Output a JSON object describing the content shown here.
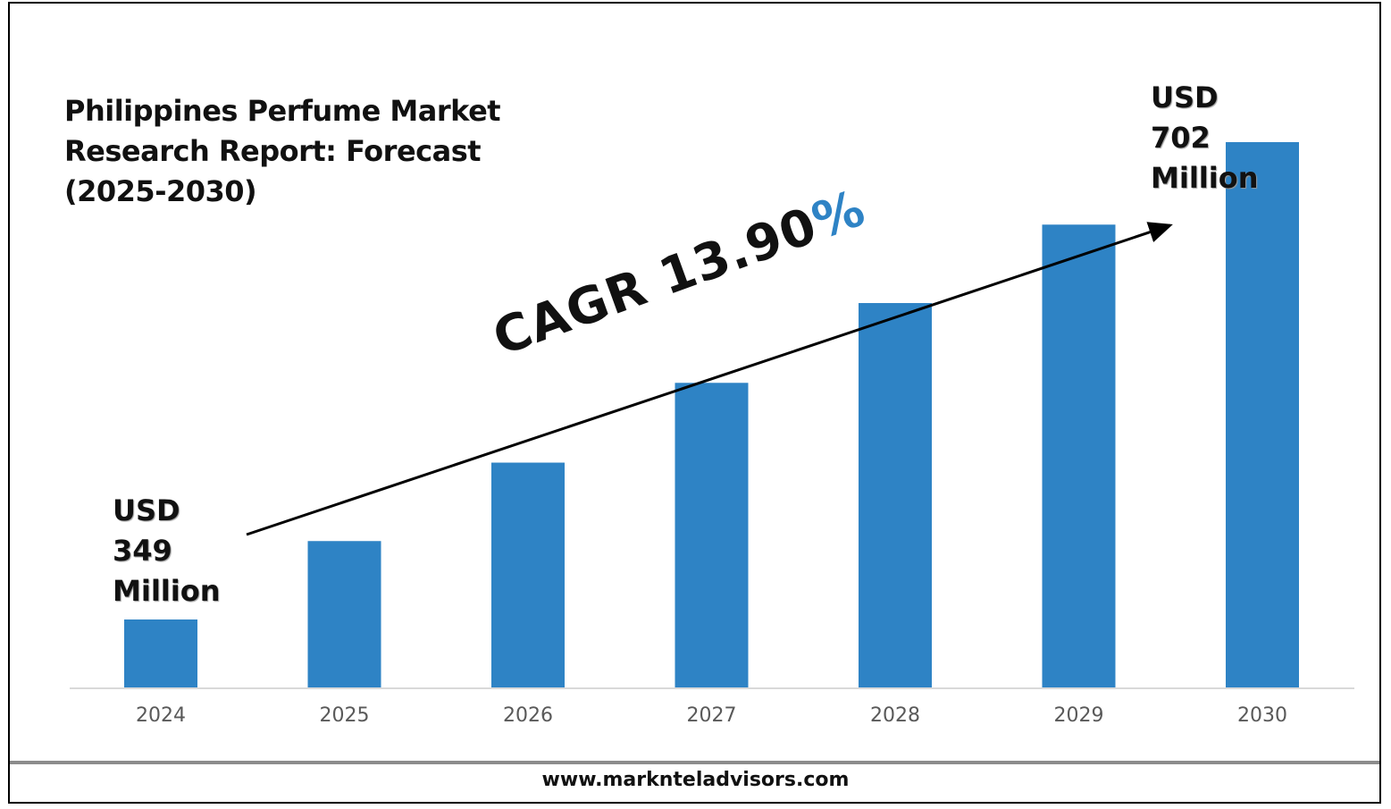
{
  "title_lines": [
    "Philippines Perfume Market",
    "Research Report: Forecast",
    "(2025-2030)"
  ],
  "start_label": {
    "lines": [
      "USD",
      "349",
      "Million"
    ]
  },
  "end_label": {
    "lines": [
      "USD",
      "702",
      "Million"
    ]
  },
  "cagr": {
    "text": "CAGR 13.90",
    "percent_sign": "%"
  },
  "footer": {
    "website": "www.marknteladvisors.com"
  },
  "colors": {
    "bar": "#2e83c5",
    "cagr_percent": "#2e83c5",
    "axis": "#d9d9d9",
    "tick_label": "#595959"
  },
  "chart_data": {
    "type": "bar",
    "title": "Philippines Perfume Market Research Report: Forecast (2025-2030)",
    "categories": [
      "2024",
      "2025",
      "2026",
      "2027",
      "2028",
      "2029",
      "2030"
    ],
    "values": [
      349,
      407,
      465,
      524,
      583,
      641,
      702
    ],
    "ylabel": "",
    "xlabel": "",
    "ylim": [
      250,
      755
    ],
    "grid": false,
    "legend": "none",
    "annotations": [
      "USD 349 Million",
      "USD 702 Million",
      "CAGR 13.90%"
    ]
  }
}
